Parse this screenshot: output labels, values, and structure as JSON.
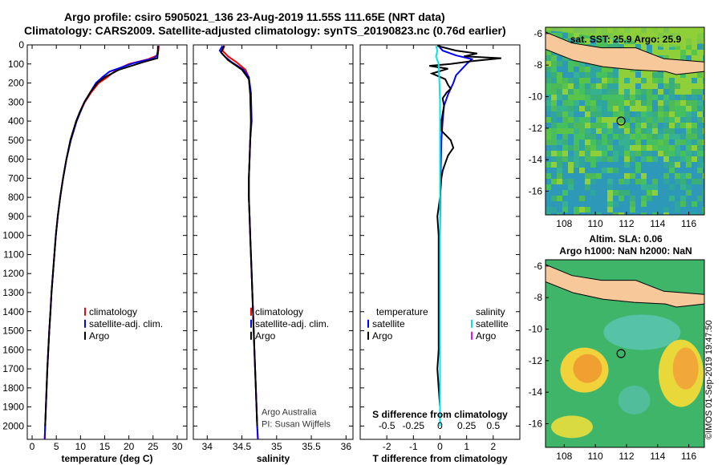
{
  "header": {
    "line1": "Argo profile: csiro 5905021_136 23-Aug-2019 11.55S 111.65E (NRT data)",
    "line2": "Climatology: CARS2009. Satellite-adjusted climatology: synTS_20190823.nc (0.76d earlier)"
  },
  "depth_ticks": [
    0,
    100,
    200,
    300,
    400,
    500,
    600,
    700,
    800,
    900,
    1000,
    1100,
    1200,
    1300,
    1400,
    1500,
    1600,
    1700,
    1800,
    1900,
    2000
  ],
  "chart_data": [
    {
      "type": "line",
      "panel": "temperature",
      "xlabel": "temperature (deg C)",
      "xlim": [
        -1,
        32
      ],
      "ylim": [
        2070,
        0
      ],
      "y_reversed": true,
      "xticks": [
        0,
        5,
        10,
        15,
        20,
        25,
        30
      ],
      "legend": {
        "placement": "bottom-right",
        "entries": [
          "climatology",
          "satellite-adj. clim.",
          "Argo"
        ]
      },
      "series": [
        {
          "name": "climatology",
          "color": "#ff0000",
          "points": [
            [
              26.2,
              5
            ],
            [
              26.1,
              30
            ],
            [
              25.9,
              55
            ],
            [
              24,
              75
            ],
            [
              20,
              100
            ],
            [
              17.5,
              130
            ],
            [
              15.5,
              170
            ],
            [
              13.8,
              200
            ],
            [
              12.2,
              250
            ],
            [
              10.9,
              300
            ],
            [
              10,
              350
            ],
            [
              9.2,
              400
            ],
            [
              8,
              500
            ],
            [
              7.1,
              600
            ],
            [
              6.4,
              700
            ],
            [
              5.8,
              800
            ],
            [
              5.3,
              900
            ],
            [
              4.9,
              1000
            ],
            [
              4.6,
              1100
            ],
            [
              4.3,
              1200
            ],
            [
              4,
              1300
            ],
            [
              3.8,
              1400
            ],
            [
              3.55,
              1500
            ],
            [
              3.35,
              1600
            ],
            [
              3.15,
              1700
            ],
            [
              3,
              1800
            ],
            [
              2.85,
              1900
            ],
            [
              2.7,
              2000
            ],
            [
              2.6,
              2070
            ]
          ]
        },
        {
          "name": "satellite-adj. clim.",
          "color": "#0000ff",
          "points": [
            [
              26.1,
              5
            ],
            [
              26.0,
              30
            ],
            [
              25.8,
              55
            ],
            [
              25.2,
              70
            ],
            [
              21,
              95
            ],
            [
              16,
              140
            ],
            [
              14.5,
              170
            ],
            [
              13.2,
              200
            ],
            [
              12,
              250
            ],
            [
              10.8,
              300
            ],
            [
              10,
              350
            ],
            [
              9.2,
              400
            ],
            [
              8,
              500
            ],
            [
              7.1,
              600
            ],
            [
              6.4,
              700
            ],
            [
              5.8,
              800
            ],
            [
              5.3,
              900
            ],
            [
              4.9,
              1000
            ],
            [
              4.6,
              1100
            ],
            [
              4.3,
              1200
            ],
            [
              4,
              1300
            ],
            [
              3.8,
              1400
            ],
            [
              3.55,
              1500
            ],
            [
              3.35,
              1600
            ],
            [
              3.15,
              1700
            ],
            [
              3,
              1800
            ],
            [
              2.85,
              1900
            ],
            [
              2.7,
              2000
            ],
            [
              2.6,
              2070
            ]
          ]
        },
        {
          "name": "Argo",
          "color": "#000000",
          "points": [
            [
              26.0,
              5
            ],
            [
              26.0,
              40
            ],
            [
              25.9,
              70
            ],
            [
              23,
              90
            ],
            [
              18,
              130
            ],
            [
              15,
              170
            ],
            [
              13.5,
              200
            ],
            [
              12,
              250
            ],
            [
              10.8,
              300
            ],
            [
              9.9,
              350
            ],
            [
              9.1,
              400
            ],
            [
              7.9,
              500
            ],
            [
              7.1,
              600
            ],
            [
              6.4,
              700
            ],
            [
              5.8,
              800
            ],
            [
              5.3,
              900
            ],
            [
              4.9,
              1000
            ],
            [
              4.6,
              1100
            ],
            [
              4.3,
              1200
            ],
            [
              4,
              1300
            ],
            [
              3.8,
              1400
            ],
            [
              3.55,
              1500
            ],
            [
              3.35,
              1600
            ],
            [
              3.15,
              1700
            ],
            [
              3,
              1800
            ],
            [
              2.85,
              1900
            ],
            [
              2.7,
              2000
            ]
          ]
        }
      ]
    },
    {
      "type": "line",
      "panel": "salinity",
      "xlabel": "salinity",
      "xlim": [
        33.8,
        36.1
      ],
      "ylim": [
        2070,
        0
      ],
      "y_reversed": true,
      "xticks": [
        34,
        34.5,
        35,
        35.5,
        36
      ],
      "legend": {
        "placement": "bottom-right",
        "entries": [
          "climatology",
          "satellite-adj. clim.",
          "Argo"
        ]
      },
      "annotations": [
        "Argo Australia",
        "PI: Susan Wijffels"
      ],
      "series": [
        {
          "name": "climatology",
          "color": "#ff0000",
          "points": [
            [
              34.25,
              5
            ],
            [
              34.22,
              30
            ],
            [
              34.3,
              60
            ],
            [
              34.42,
              90
            ],
            [
              34.55,
              130
            ],
            [
              34.6,
              170
            ],
            [
              34.62,
              250
            ],
            [
              34.63,
              400
            ],
            [
              34.62,
              500
            ],
            [
              34.61,
              600
            ],
            [
              34.6,
              700
            ],
            [
              34.6,
              800
            ],
            [
              34.61,
              900
            ],
            [
              34.62,
              1000
            ],
            [
              34.64,
              1200
            ],
            [
              34.66,
              1400
            ],
            [
              34.68,
              1600
            ],
            [
              34.7,
              1800
            ],
            [
              34.72,
              2000
            ],
            [
              34.73,
              2070
            ]
          ]
        },
        {
          "name": "satellite-adj. clim.",
          "color": "#0000ff",
          "points": [
            [
              34.22,
              5
            ],
            [
              34.18,
              30
            ],
            [
              34.25,
              60
            ],
            [
              34.35,
              90
            ],
            [
              34.52,
              130
            ],
            [
              34.6,
              170
            ],
            [
              34.63,
              250
            ],
            [
              34.64,
              400
            ],
            [
              34.62,
              500
            ],
            [
              34.61,
              600
            ],
            [
              34.6,
              700
            ],
            [
              34.6,
              800
            ],
            [
              34.61,
              900
            ],
            [
              34.62,
              1000
            ],
            [
              34.64,
              1200
            ],
            [
              34.66,
              1400
            ],
            [
              34.68,
              1600
            ],
            [
              34.7,
              1800
            ],
            [
              34.72,
              2000
            ],
            [
              34.73,
              2070
            ]
          ]
        },
        {
          "name": "Argo",
          "color": "#000000",
          "points": [
            [
              34.24,
              5
            ],
            [
              34.2,
              40
            ],
            [
              34.3,
              80
            ],
            [
              34.5,
              130
            ],
            [
              34.6,
              180
            ],
            [
              34.62,
              260
            ],
            [
              34.63,
              400
            ],
            [
              34.62,
              500
            ],
            [
              34.61,
              600
            ],
            [
              34.6,
              700
            ],
            [
              34.6,
              800
            ],
            [
              34.61,
              900
            ],
            [
              34.62,
              1000
            ],
            [
              34.64,
              1200
            ],
            [
              34.66,
              1400
            ],
            [
              34.68,
              1600
            ],
            [
              34.7,
              1800
            ],
            [
              34.72,
              2000
            ]
          ]
        }
      ]
    },
    {
      "type": "line",
      "panel": "difference",
      "xlabel": "T difference from climatology",
      "x2label": "S difference from climatology",
      "xlim": [
        -3,
        3
      ],
      "ylim": [
        2070,
        0
      ],
      "y_reversed": true,
      "xticks": [
        -2,
        -1,
        0,
        1,
        2
      ],
      "x2ticks": [
        "-0.5",
        "-0.25",
        "0",
        "0.25",
        "0.5"
      ],
      "legend": {
        "placement": "bottom",
        "groups": [
          {
            "title": "temperature",
            "entries": [
              "satellite",
              "Argo"
            ]
          },
          {
            "title": "salinity",
            "entries": [
              "satellite",
              "Argo"
            ]
          }
        ]
      },
      "series": [
        {
          "name": "temperature satellite",
          "color": "#0000ff",
          "points": [
            [
              -0.05,
              5
            ],
            [
              0.1,
              30
            ],
            [
              0.6,
              55
            ],
            [
              1.2,
              75
            ],
            [
              1.0,
              100
            ],
            [
              0.8,
              130
            ],
            [
              0.6,
              160
            ],
            [
              0.5,
              200
            ],
            [
              0.3,
              260
            ],
            [
              0.15,
              320
            ],
            [
              0.1,
              400
            ],
            [
              0.05,
              500
            ],
            [
              0.02,
              700
            ],
            [
              0.0,
              1000
            ],
            [
              0.0,
              2000
            ]
          ]
        },
        {
          "name": "temperature Argo",
          "color": "#000000",
          "points": [
            [
              -0.1,
              5
            ],
            [
              0.6,
              30
            ],
            [
              1.4,
              45
            ],
            [
              0.9,
              60
            ],
            [
              2.3,
              70
            ],
            [
              1.2,
              85
            ],
            [
              0.4,
              100
            ],
            [
              -0.4,
              110
            ],
            [
              0.3,
              125
            ],
            [
              -0.3,
              150
            ],
            [
              0.2,
              180
            ],
            [
              0.3,
              210
            ],
            [
              0.4,
              230
            ],
            [
              0.25,
              250
            ],
            [
              0.1,
              280
            ],
            [
              0.15,
              320
            ],
            [
              0.05,
              400
            ],
            [
              0.05,
              450
            ],
            [
              0.4,
              500
            ],
            [
              0.5,
              540
            ],
            [
              0.3,
              580
            ],
            [
              0.2,
              620
            ],
            [
              0.1,
              660
            ],
            [
              0.05,
              700
            ],
            [
              0.0,
              800
            ],
            [
              -0.1,
              900
            ],
            [
              -0.05,
              1000
            ],
            [
              -0.05,
              1200
            ],
            [
              -0.05,
              1400
            ],
            [
              -0.05,
              1600
            ],
            [
              -0.1,
              1700
            ],
            [
              -0.05,
              1800
            ],
            [
              0.0,
              1900
            ],
            [
              0.0,
              2000
            ]
          ]
        },
        {
          "name": "salinity satellite",
          "color": "#00e5ee",
          "points": [
            [
              -0.15,
              5
            ],
            [
              -0.1,
              30
            ],
            [
              -0.15,
              60
            ],
            [
              -0.05,
              100
            ],
            [
              -0.02,
              200
            ],
            [
              0.0,
              300
            ],
            [
              0.0,
              2000
            ]
          ]
        }
      ]
    },
    {
      "type": "heatmap",
      "panel": "sat-sst-map",
      "title": "sat. SST: 25.9 Argo: 25.9",
      "xticks": [
        108,
        110,
        112,
        114,
        116
      ],
      "yticks": [
        -6,
        -8,
        -10,
        -12,
        -14,
        -16
      ],
      "xlim": [
        106.8,
        117
      ],
      "ylim": [
        -17.5,
        -5.6
      ],
      "marker": {
        "lon": 111.65,
        "lat": -11.55
      }
    },
    {
      "type": "heatmap",
      "panel": "altimetry-map",
      "title": "Altim. SLA: 0.06",
      "subtitle": "Argo h1000: NaN h2000: NaN",
      "xticks": [
        108,
        110,
        112,
        114,
        116
      ],
      "yticks": [
        -6,
        -8,
        -10,
        -12,
        -14,
        -16
      ],
      "xlim": [
        106.8,
        117
      ],
      "ylim": [
        -17.5,
        -5.6
      ],
      "marker": {
        "lon": 111.65,
        "lat": -11.55
      }
    }
  ],
  "stamp": "©IMOS 01-Sep-2019 19:47:50"
}
